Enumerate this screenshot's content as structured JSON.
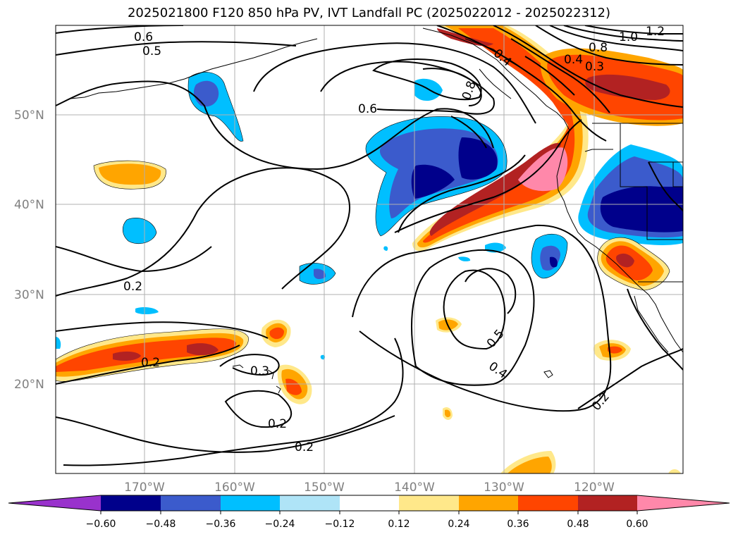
{
  "title": "2025021800 F120 850 hPa PV, IVT Landfall PC (2025022012 - 2025022312)",
  "map": {
    "lon_range": [
      -180,
      -110
    ],
    "lat_range": [
      10,
      60
    ],
    "lat_labels": [
      "50°N",
      "40°N",
      "30°N",
      "20°N"
    ],
    "lon_labels": [
      "170°W",
      "160°W",
      "150°W",
      "140°W",
      "130°W",
      "120°W"
    ],
    "contour_labels": [
      "0.6",
      "0.5",
      "0.6",
      "0.8",
      "1.0",
      "1.2",
      "0.4",
      "0.8",
      "0.3",
      "0.2",
      "0.2",
      "0.3",
      "0.2",
      "0.2",
      "0.5",
      "0.4",
      "0.2",
      "0.4"
    ]
  },
  "colorbar": {
    "ticks": [
      "−0.60",
      "−0.48",
      "−0.36",
      "−0.24",
      "−0.12",
      "0.12",
      "0.24",
      "0.36",
      "0.48",
      "0.60"
    ],
    "colors": [
      "#9932cc",
      "#00008b",
      "#3b5bcc",
      "#00bfff",
      "#afe4f7",
      "#ffffff",
      "#ffe88a",
      "#ffa500",
      "#ff4500",
      "#b22222",
      "#ff88aa"
    ]
  }
}
